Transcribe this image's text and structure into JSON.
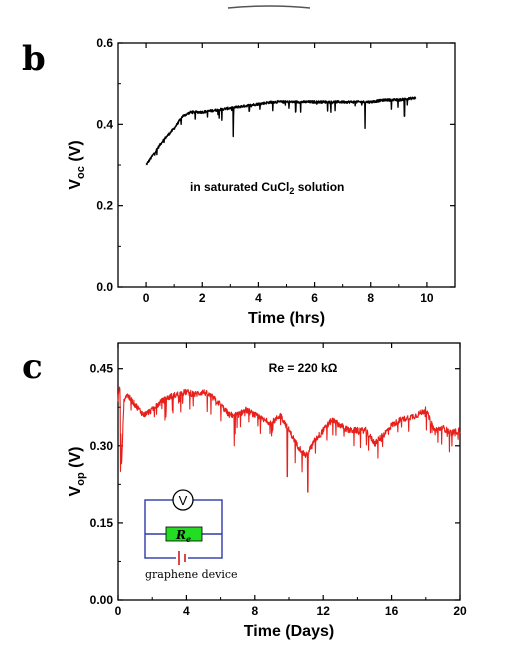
{
  "panels": [
    {
      "letter": "b"
    },
    {
      "letter": "c"
    }
  ],
  "chart_data": [
    {
      "type": "line",
      "color": "#000000",
      "xlabel": "Time (hrs)",
      "ylabel": {
        "main": "V",
        "sub": "oc",
        "unit": " (V)"
      },
      "xlim": [
        -1,
        11
      ],
      "ylim": [
        0.0,
        0.6
      ],
      "xticks": [
        0,
        2,
        4,
        6,
        8,
        10
      ],
      "yticks": [
        0.0,
        0.2,
        0.4,
        0.6
      ],
      "ytick_labels": [
        "0.0",
        "0.2",
        "0.4",
        "0.6"
      ],
      "annotation": {
        "text": "in saturated CuCl",
        "sub": "2",
        "tail": " solution"
      },
      "series": [
        {
          "x": [
            0,
            0.3,
            0.6,
            1.0,
            1.3,
            1.6,
            2.0,
            2.5,
            3.0,
            3.5,
            4.0,
            4.5,
            5.0,
            5.5,
            6.0,
            6.5,
            7.0,
            7.5,
            8.0,
            8.5,
            9.0,
            9.6
          ],
          "y": [
            0.3,
            0.33,
            0.36,
            0.39,
            0.42,
            0.43,
            0.43,
            0.435,
            0.44,
            0.445,
            0.45,
            0.455,
            0.455,
            0.455,
            0.455,
            0.455,
            0.455,
            0.455,
            0.455,
            0.46,
            0.46,
            0.465
          ]
        }
      ],
      "dips": [
        [
          1.1,
          0.4
        ],
        [
          2.7,
          0.41
        ],
        [
          3.1,
          0.37
        ],
        [
          5.5,
          0.43
        ],
        [
          7.8,
          0.39
        ],
        [
          9.2,
          0.42
        ]
      ]
    },
    {
      "type": "line",
      "color": "#e8201c",
      "xlabel": "Time (Days)",
      "ylabel": {
        "main": "V",
        "sub": "op",
        "unit": " (V)"
      },
      "xlim": [
        0,
        20
      ],
      "ylim": [
        0.0,
        0.5
      ],
      "xticks": [
        0,
        4,
        8,
        12,
        16,
        20
      ],
      "yticks": [
        0.0,
        0.15,
        0.3,
        0.45
      ],
      "ytick_labels": [
        "0.00",
        "0.15",
        "0.30",
        "0.45"
      ],
      "annotation": {
        "text": "Re = 220 kΩ"
      },
      "series": [
        {
          "x": [
            0,
            0.1,
            0.2,
            0.35,
            0.5,
            1,
            1.5,
            2,
            2.5,
            3,
            3.5,
            4,
            4.5,
            5,
            5.5,
            6,
            6.5,
            7,
            7.5,
            8,
            8.5,
            9,
            9.5,
            10,
            10.5,
            11,
            11.5,
            12,
            12.5,
            13,
            13.5,
            14,
            14.5,
            15,
            15.5,
            16,
            16.5,
            17,
            17.5,
            18,
            18.5,
            19,
            19.5,
            20
          ],
          "y": [
            0.39,
            0.42,
            0.26,
            0.39,
            0.4,
            0.38,
            0.36,
            0.37,
            0.385,
            0.395,
            0.4,
            0.405,
            0.4,
            0.405,
            0.395,
            0.38,
            0.36,
            0.36,
            0.37,
            0.36,
            0.35,
            0.345,
            0.36,
            0.33,
            0.3,
            0.28,
            0.31,
            0.33,
            0.35,
            0.34,
            0.33,
            0.33,
            0.33,
            0.305,
            0.32,
            0.34,
            0.35,
            0.355,
            0.36,
            0.37,
            0.33,
            0.335,
            0.325,
            0.33
          ]
        }
      ],
      "dips": [
        [
          0.15,
          0.25
        ],
        [
          6.8,
          0.3
        ],
        [
          9.9,
          0.24
        ],
        [
          11.1,
          0.21
        ],
        [
          13.8,
          0.3
        ]
      ],
      "inset": {
        "meter": "V",
        "resistor_main": "R",
        "resistor_sub": "e",
        "caption": "graphene device"
      }
    }
  ]
}
